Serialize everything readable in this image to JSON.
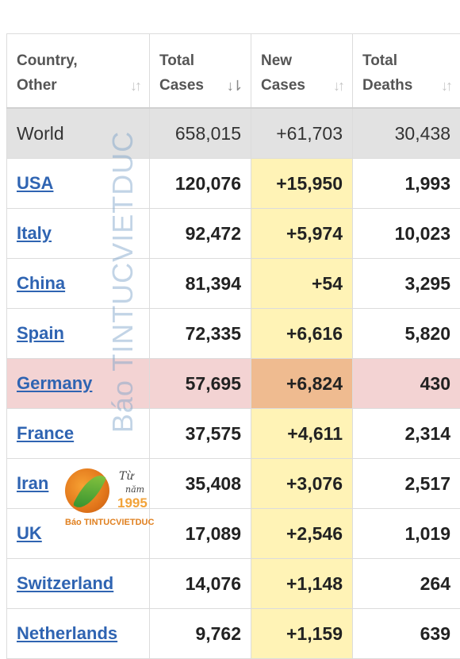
{
  "header": {
    "country": "Country,\nOther",
    "total_cases": "Total\nCases",
    "new_cases": "New\nCases",
    "total_deaths": "Total\nDeaths"
  },
  "icons": {
    "sort": "sort-icon",
    "sort_active": "sort-desc-icon"
  },
  "world": {
    "country": "World",
    "total_cases": "658,015",
    "new_cases": "+61,703",
    "total_deaths": "30,438"
  },
  "rows": [
    {
      "country": "USA",
      "total_cases": "120,076",
      "new_cases": "+15,950",
      "total_deaths": "1,993"
    },
    {
      "country": "Italy",
      "total_cases": "92,472",
      "new_cases": "+5,974",
      "total_deaths": "10,023"
    },
    {
      "country": "China",
      "total_cases": "81,394",
      "new_cases": "+54",
      "total_deaths": "3,295"
    },
    {
      "country": "Spain",
      "total_cases": "72,335",
      "new_cases": "+6,616",
      "total_deaths": "5,820"
    },
    {
      "country": "Germany",
      "total_cases": "57,695",
      "new_cases": "+6,824",
      "total_deaths": "430"
    },
    {
      "country": "France",
      "total_cases": "37,575",
      "new_cases": "+4,611",
      "total_deaths": "2,314"
    },
    {
      "country": "Iran",
      "total_cases": "35,408",
      "new_cases": "+3,076",
      "total_deaths": "2,517"
    },
    {
      "country": "UK",
      "total_cases": "17,089",
      "new_cases": "+2,546",
      "total_deaths": "1,019"
    },
    {
      "country": "Switzerland",
      "total_cases": "14,076",
      "new_cases": "+1,148",
      "total_deaths": "264"
    },
    {
      "country": "Netherlands",
      "total_cases": "9,762",
      "new_cases": "+1,159",
      "total_deaths": "639"
    }
  ],
  "highlighted_row": "Germany",
  "watermark": {
    "text": "Báo TINTUCVIETDUC"
  },
  "logo": {
    "tu": "Từ",
    "nam": "năm",
    "year": "1995",
    "brand": "Báo TINTUCVIETDUC"
  },
  "colors": {
    "link": "#2f64b2",
    "new_cases_bg": "#fff3b6",
    "highlight_row_bg": "#f3d3d3",
    "highlight_new_cases_bg": "#efbb90",
    "world_row_bg": "#e2e2e2"
  }
}
